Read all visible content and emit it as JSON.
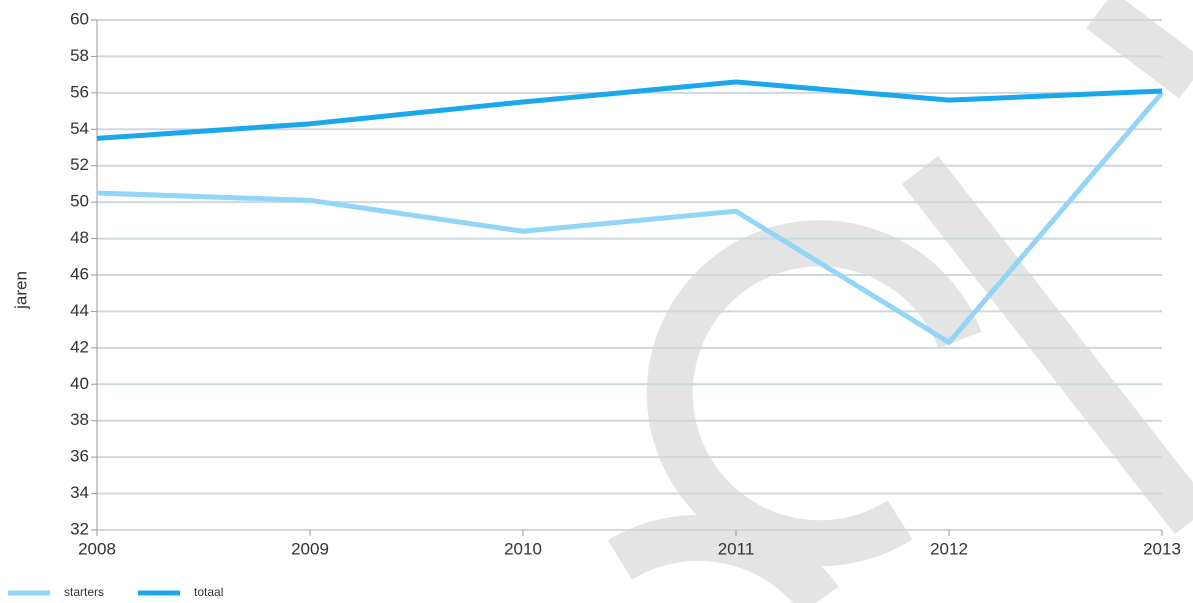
{
  "chart_data": {
    "type": "line",
    "ylabel": "jaren",
    "x": [
      2008,
      2009,
      2010,
      2011,
      2012,
      2013
    ],
    "xlim": [
      2008,
      2013
    ],
    "xticks": [
      2008,
      2009,
      2010,
      2011,
      2012,
      2013
    ],
    "ylim": [
      32,
      60
    ],
    "yticks": [
      32,
      34,
      36,
      38,
      40,
      42,
      44,
      46,
      48,
      50,
      52,
      54,
      56,
      58,
      60
    ],
    "grid": true,
    "legend": "bottom-left",
    "series": [
      {
        "name": "starters",
        "color": "#92d5f6",
        "values": [
          50.5,
          50.1,
          48.4,
          49.5,
          42.3,
          56.0
        ]
      },
      {
        "name": "totaal",
        "color": "#1ba7ec",
        "values": [
          53.5,
          54.3,
          55.5,
          56.6,
          55.6,
          56.1
        ]
      }
    ]
  }
}
